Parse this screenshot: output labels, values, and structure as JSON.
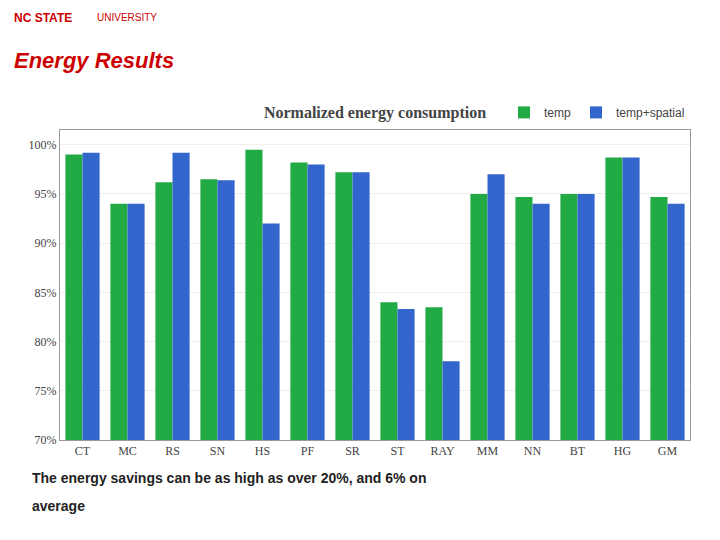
{
  "chart_data": {
    "type": "bar",
    "title": "Normalized energy consumption",
    "categories": [
      "CT",
      "MC",
      "RS",
      "SN",
      "HS",
      "PF",
      "SR",
      "ST",
      "RAY",
      "MM",
      "NN",
      "BT",
      "HG",
      "GM"
    ],
    "series": [
      {
        "name": "temp",
        "color": "#22aa44",
        "values": [
          99.0,
          94.0,
          96.2,
          96.5,
          99.5,
          98.2,
          97.2,
          84.0,
          83.5,
          95.0,
          94.7,
          95.0,
          98.7,
          94.7
        ]
      },
      {
        "name": "temp+spatial",
        "color": "#3366cc",
        "values": [
          99.2,
          94.0,
          99.2,
          96.4,
          92.0,
          98.0,
          97.2,
          83.3,
          78.0,
          97.0,
          94.0,
          95.0,
          98.7,
          94.0
        ]
      }
    ],
    "ylim": [
      70,
      101.5
    ],
    "yticks": [
      {
        "value": 70,
        "label": "70%"
      },
      {
        "value": 75,
        "label": "75%"
      },
      {
        "value": 80,
        "label": "80%"
      },
      {
        "value": 85,
        "label": "85%"
      },
      {
        "value": 90,
        "label": "90%"
      },
      {
        "value": 95,
        "label": "95%"
      },
      {
        "value": 100,
        "label": "100%"
      }
    ],
    "grid": true,
    "legend": "upper right",
    "annotations": [
      "NC STATE",
      "UNIVERSITY",
      "Energy Results",
      "The energy savings can be as high as over 20%, and 6% on",
      "average"
    ]
  }
}
